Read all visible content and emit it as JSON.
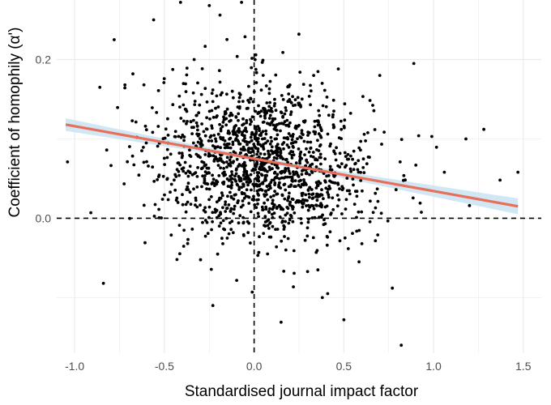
{
  "chart_data": {
    "type": "scatter",
    "title": "",
    "xlabel": "Standardised journal impact factor",
    "ylabel": "Coefficient of homophily (α')",
    "xlim": [
      -1.1,
      1.6
    ],
    "ylim": [
      -0.17,
      0.275
    ],
    "x_ticks": [
      -1.0,
      -0.5,
      0.0,
      0.5,
      1.0,
      1.5
    ],
    "x_tick_labels": [
      "-1.0",
      "-0.5",
      "0.0",
      "0.5",
      "1.0",
      "1.5"
    ],
    "y_ticks": [
      0.0,
      0.2
    ],
    "y_tick_labels": [
      "0.0",
      "0.2"
    ],
    "reference_lines": {
      "x": 0,
      "y": 0,
      "style": "dashed"
    },
    "grid": true,
    "colors": {
      "points": "#000000",
      "fit_line": "#e8705a",
      "confidence_band": "#c9e3f2",
      "grid": "#ebebeb",
      "reference": "#000000"
    },
    "fit": {
      "type": "linear",
      "x": [
        -1.05,
        1.47
      ],
      "y": [
        0.118,
        0.015
      ],
      "ci_halfwidth_edge": 0.01,
      "ci_halfwidth_center": 0.003,
      "ci_center_x": 0.05
    },
    "points_summary": {
      "n": 1450,
      "center_x": 0.05,
      "center_y": 0.07,
      "sd_x": 0.3,
      "sd_y": 0.05
    },
    "outliers": [
      [
        -1.04,
        0.071
      ],
      [
        -0.91,
        0.007
      ],
      [
        -0.86,
        0.165
      ],
      [
        -0.84,
        -0.082
      ],
      [
        -0.78,
        0.225
      ],
      [
        -0.72,
        0.168
      ],
      [
        -0.56,
        0.25
      ],
      [
        -0.41,
        0.272
      ],
      [
        -0.25,
        0.268
      ],
      [
        -0.19,
        0.256
      ],
      [
        -0.07,
        0.272
      ],
      [
        0.38,
        -0.1
      ],
      [
        0.41,
        -0.095
      ],
      [
        0.5,
        -0.128
      ],
      [
        0.7,
        0.18
      ],
      [
        0.77,
        -0.088
      ],
      [
        0.82,
        -0.16
      ],
      [
        0.89,
        0.195
      ],
      [
        1.18,
        0.1
      ],
      [
        1.28,
        0.112
      ],
      [
        1.37,
        0.048
      ],
      [
        1.47,
        0.058
      ],
      [
        1.2,
        0.016
      ],
      [
        -0.23,
        -0.11
      ],
      [
        0.15,
        -0.131
      ],
      [
        -0.43,
        -0.052
      ],
      [
        1.06,
        0.058
      ],
      [
        0.99,
        0.103
      ]
    ]
  }
}
